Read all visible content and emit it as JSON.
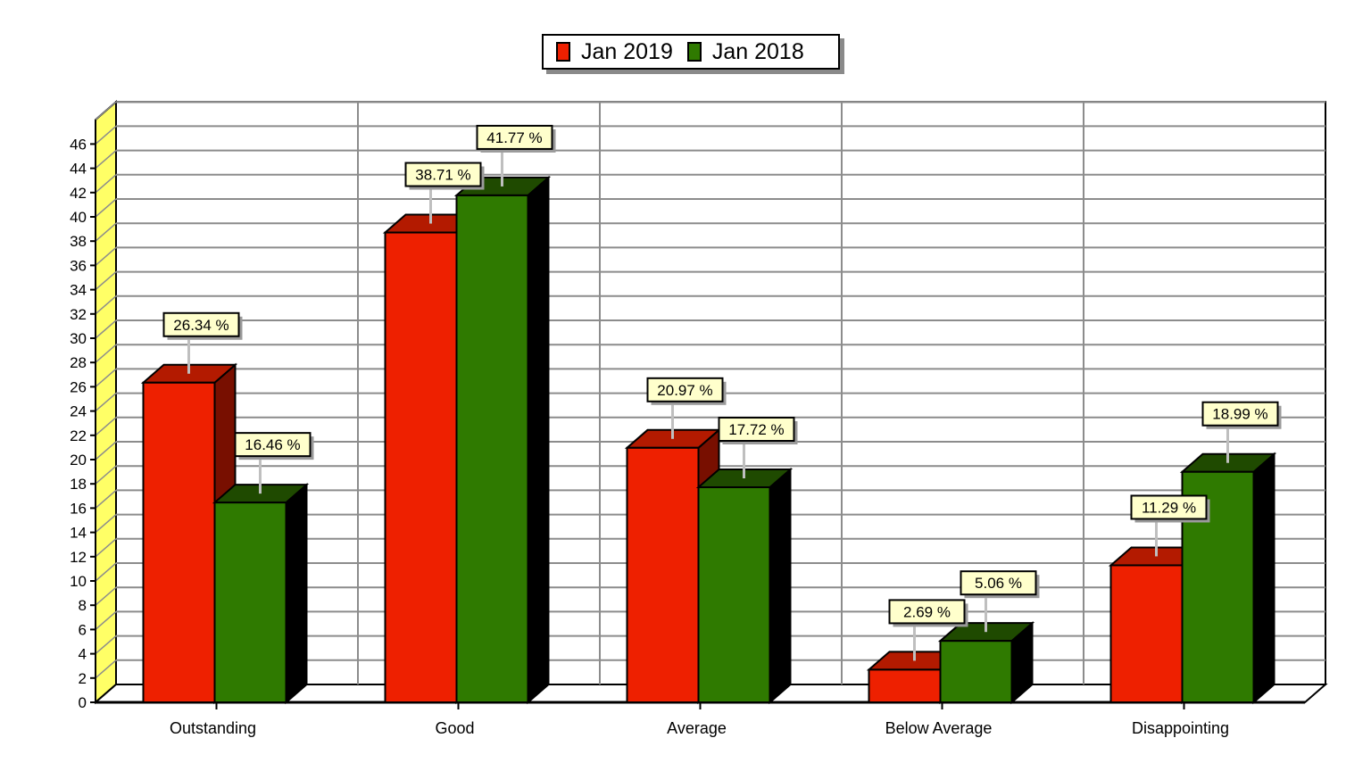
{
  "chart_data": {
    "type": "bar",
    "style": "3d-clustered",
    "categories": [
      "Outstanding",
      "Good",
      "Average",
      "Below Average",
      "Disappointing"
    ],
    "series": [
      {
        "name": "Jan 2019",
        "color": "#ee2000",
        "side_color": "#780f00",
        "top_color": "#b31a00",
        "values": [
          26.34,
          38.71,
          20.97,
          2.69,
          11.29
        ],
        "labels": [
          "26.34 %",
          "38.71 %",
          "20.97 %",
          "2.69 %",
          "11.29 %"
        ]
      },
      {
        "name": "Jan 2018",
        "color": "#2f7a00",
        "side_color": "#000000",
        "top_color": "#1f4a00",
        "values": [
          16.46,
          41.77,
          17.72,
          5.06,
          18.99
        ],
        "labels": [
          "16.46 %",
          "41.77 %",
          "17.72 %",
          "5.06 %",
          "18.99 %"
        ]
      }
    ],
    "y_ticks": [
      "0",
      "2",
      "4",
      "6",
      "8",
      "10",
      "12",
      "14",
      "16",
      "18",
      "20",
      "22",
      "24",
      "26",
      "28",
      "30",
      "32",
      "34",
      "36",
      "38",
      "40",
      "42",
      "44",
      "46"
    ],
    "ylim": [
      0,
      46
    ],
    "grid": true,
    "legend_position": "top-center",
    "label_box_color": "#ffffcc",
    "wall_color": "#ffff66"
  }
}
